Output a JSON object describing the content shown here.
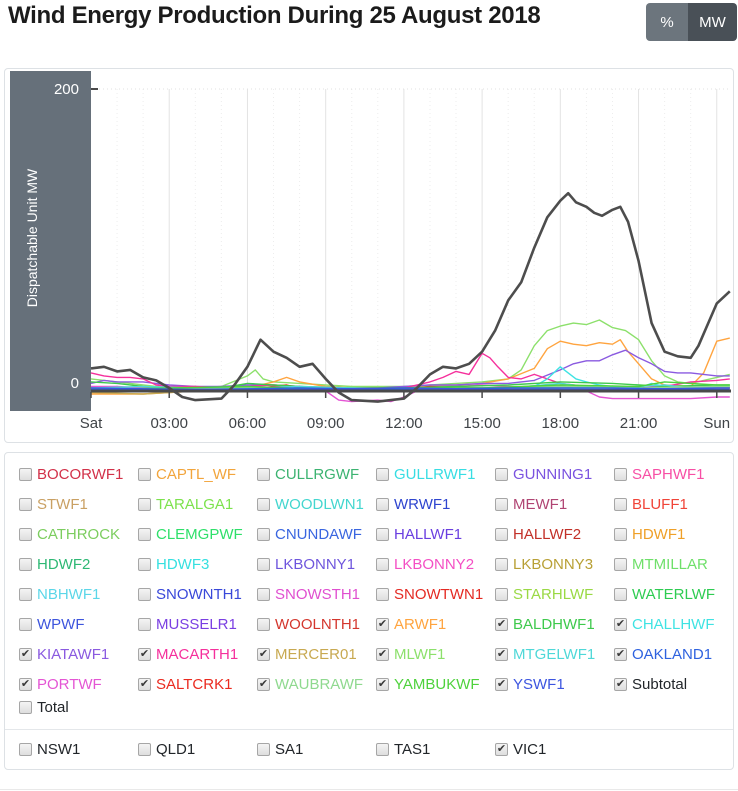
{
  "header": {
    "title": "Wind Energy Production During 25 August 2018",
    "toggle": {
      "percent_label": "%",
      "mw_label": "MW",
      "percent_color": "#6c757d",
      "mw_color": "#495057",
      "selected": "MW"
    }
  },
  "chart": {
    "y_axis_label": "Dispatchable Unit MW",
    "y_tick_top": "200",
    "y_tick_bottom": "0",
    "x_ticks": [
      "Sat",
      "03:00",
      "06:00",
      "09:00",
      "12:00",
      "15:00",
      "18:00",
      "21:00",
      "Sun"
    ],
    "band_color": "#66707a"
  },
  "chart_data": {
    "type": "line",
    "title": "Wind Energy Production During 25 August 2018",
    "ylabel": "Dispatchable Unit MW",
    "x_unit": "hours since Saturday 00:00",
    "xlim": [
      0,
      24.5
    ],
    "ylim": [
      0,
      200
    ],
    "y_ticks": [
      0,
      200
    ],
    "x_tick_labels": [
      "Sat",
      "03:00",
      "06:00",
      "09:00",
      "12:00",
      "15:00",
      "18:00",
      "21:00",
      "Sun"
    ],
    "grid": "vertical hourly dotted, 3-hourly solid, dotted line at 200",
    "series": [
      {
        "name": "Subtotal",
        "color": "#4d4d4d",
        "width": 2.6,
        "x": [
          0,
          0.5,
          1,
          1.5,
          2,
          2.5,
          3,
          3.5,
          4,
          5,
          5.5,
          6,
          6.5,
          7,
          7.5,
          8,
          8.5,
          9,
          9.5,
          10,
          11,
          12,
          12.5,
          13,
          13.5,
          14,
          14.5,
          15,
          15.5,
          16,
          16.5,
          17,
          17.5,
          18,
          18.3,
          18.6,
          19,
          19.3,
          19.6,
          20,
          20.3,
          20.6,
          21,
          21.5,
          22,
          22.5,
          23,
          23.3,
          23.6,
          24,
          24.5
        ],
        "y": [
          15,
          16,
          13,
          14,
          9,
          7,
          2,
          -4,
          -6,
          -5,
          4,
          16,
          34,
          26,
          22,
          16,
          18,
          8,
          -1,
          -6,
          -7,
          -5,
          2,
          11,
          16,
          15,
          18,
          26,
          40,
          60,
          72,
          95,
          115,
          126,
          131,
          125,
          122,
          118,
          116,
          120,
          122,
          112,
          86,
          45,
          26,
          23,
          22,
          30,
          42,
          58,
          66
        ]
      },
      {
        "name": "MLWF1",
        "color": "#8ce06b",
        "width": 1.4,
        "x": [
          0,
          1,
          2,
          3,
          4,
          5,
          6,
          6.3,
          6.6,
          7,
          8,
          9,
          10,
          11,
          12,
          13,
          14,
          15,
          16,
          16.5,
          17,
          17.5,
          18,
          18.5,
          19,
          19.5,
          20,
          20.5,
          21,
          21.5,
          22,
          22.5,
          23,
          24,
          24.5
        ],
        "y": [
          8,
          6,
          4,
          2,
          2,
          3,
          10,
          14,
          8,
          6,
          5,
          4,
          3,
          3,
          3,
          4,
          5,
          6,
          8,
          14,
          30,
          40,
          43,
          45,
          44,
          47,
          42,
          40,
          34,
          20,
          10,
          6,
          5,
          9,
          11
        ]
      },
      {
        "name": "ARWF1",
        "color": "#ffa43f",
        "width": 1.4,
        "x": [
          0,
          1,
          2,
          3,
          4,
          5,
          6,
          7,
          7.5,
          8,
          9,
          10,
          11,
          12,
          13,
          14,
          15,
          16,
          17,
          17.5,
          18,
          18.5,
          19,
          19.5,
          20,
          20.3,
          20.6,
          21,
          21.5,
          22,
          23,
          23.5,
          24,
          24.5
        ],
        "y": [
          -2,
          -2,
          -2,
          -1,
          0,
          1,
          2,
          6,
          9,
          6,
          3,
          2,
          2,
          2,
          3,
          4,
          5,
          8,
          15,
          28,
          33,
          31,
          30,
          32,
          31,
          34,
          26,
          18,
          8,
          4,
          3,
          12,
          33,
          35
        ]
      },
      {
        "name": "KIATAWF1",
        "color": "#8a5ae0",
        "width": 1.4,
        "x": [
          0,
          0.5,
          1,
          2,
          3,
          4,
          5,
          6,
          7,
          8,
          9,
          10,
          11,
          12,
          13,
          14,
          15,
          16,
          17,
          18,
          18.5,
          19,
          19.5,
          20,
          20.5,
          21,
          21.5,
          22,
          22.5,
          23,
          24,
          24.5
        ],
        "y": [
          5,
          7,
          6,
          6,
          4,
          3,
          3,
          4,
          4,
          3,
          2,
          2,
          2,
          3,
          4,
          4,
          5,
          5,
          7,
          14,
          18,
          20,
          20,
          24,
          27,
          22,
          18,
          13,
          12,
          12,
          10,
          10
        ]
      },
      {
        "name": "MACARTH1",
        "color": "#f5309c",
        "width": 1.4,
        "x": [
          0,
          0.5,
          1,
          1.5,
          2,
          2.5,
          3,
          4,
          5,
          6,
          7,
          8,
          9,
          10,
          11,
          12,
          13,
          13.5,
          14,
          14.5,
          15,
          15.3,
          15.6,
          16,
          16.5,
          17,
          17.5,
          18,
          19,
          20,
          21,
          22,
          23,
          24,
          24.5
        ],
        "y": [
          12,
          10,
          9,
          9,
          8,
          4,
          3,
          3,
          2,
          3,
          4,
          3,
          2,
          1,
          1,
          2,
          6,
          9,
          13,
          11,
          25,
          22,
          16,
          9,
          8,
          11,
          8,
          5,
          3,
          2,
          2,
          3,
          6,
          7,
          8
        ]
      },
      {
        "name": "CHALLHWF",
        "color": "#3fe3e3",
        "width": 1.4,
        "x": [
          0,
          2,
          4,
          6,
          8,
          10,
          12,
          14,
          16,
          17,
          17.5,
          18,
          18.3,
          18.6,
          19,
          19.5,
          20,
          21,
          21.5,
          22,
          23,
          24,
          24.5
        ],
        "y": [
          2,
          2,
          1,
          2,
          2,
          1,
          1,
          2,
          2,
          3,
          8,
          16,
          12,
          8,
          6,
          4,
          3,
          2,
          5,
          3,
          2,
          3,
          3
        ]
      },
      {
        "name": "PORTWF",
        "color": "#e455d4",
        "width": 1.4,
        "x": [
          0,
          1,
          2,
          3,
          4,
          5,
          6,
          7,
          8,
          9,
          9.5,
          10,
          11,
          11.5,
          12,
          12.5,
          13,
          14,
          15,
          16,
          17,
          18,
          19,
          19.5,
          20,
          21,
          22,
          23,
          24,
          24.5
        ],
        "y": [
          3,
          3,
          2,
          1,
          1,
          1,
          2,
          2,
          1,
          0,
          -6,
          -7,
          -6,
          -7,
          -4,
          0,
          2,
          3,
          4,
          3,
          2,
          1,
          0,
          -4,
          -5,
          -5,
          -5,
          -5,
          -4,
          -4
        ]
      },
      {
        "name": "MERCER01",
        "color": "#c8a951",
        "width": 1.4,
        "x": [
          0,
          2,
          4,
          6,
          8,
          10,
          12,
          14,
          16,
          18,
          20,
          22,
          24,
          24.5
        ],
        "y": [
          -1,
          -2,
          0,
          1,
          2,
          1,
          1,
          2,
          2,
          1,
          1,
          1,
          2,
          2
        ]
      },
      {
        "name": "SALTCRK1",
        "color": "#ea2a1f",
        "width": 1.4,
        "x": [
          0,
          2,
          4,
          5.5,
          6,
          7,
          7.5,
          8,
          10,
          12,
          13,
          14,
          16,
          18,
          20,
          22,
          24,
          24.5
        ],
        "y": [
          1,
          1,
          0,
          3,
          1,
          3,
          4,
          2,
          1,
          1,
          3,
          2,
          2,
          3,
          2,
          1,
          2,
          2
        ]
      },
      {
        "name": "BALDHWF1",
        "color": "#3ec94c",
        "width": 1.4,
        "x": [
          0,
          1,
          2,
          3,
          4,
          5,
          6,
          7,
          8,
          10,
          12,
          14,
          16,
          18,
          20,
          22,
          24,
          24.5
        ],
        "y": [
          6,
          5,
          3,
          2,
          1,
          2,
          5,
          4,
          3,
          2,
          2,
          3,
          4,
          6,
          5,
          3,
          4,
          4
        ]
      },
      {
        "name": "MTGELWF1",
        "color": "#4fd8d8",
        "width": 1.4,
        "x": [
          0,
          2,
          4,
          6,
          8,
          10,
          12,
          14,
          16,
          18,
          19,
          20,
          22,
          23,
          24,
          24.5
        ],
        "y": [
          2,
          3,
          2,
          2,
          3,
          2,
          1,
          2,
          2,
          5,
          3,
          2,
          4,
          2,
          3,
          3
        ]
      },
      {
        "name": "WAUBRAWF",
        "color": "#8fd98f",
        "width": 1.4,
        "x": [
          0,
          3,
          6,
          9,
          12,
          15,
          18,
          21,
          24,
          24.5
        ],
        "y": [
          2,
          1,
          2,
          1,
          1,
          2,
          3,
          2,
          3,
          3
        ]
      },
      {
        "name": "YAMBUKWF",
        "color": "#4ed23c",
        "width": 1.4,
        "x": [
          0,
          3,
          6,
          9,
          12,
          15,
          18,
          21,
          22,
          24,
          24.5
        ],
        "y": [
          1,
          2,
          3,
          1,
          2,
          2,
          4,
          3,
          6,
          4,
          4
        ]
      },
      {
        "name": "OAKLAND1",
        "color": "#2e62df",
        "width": 1.4,
        "x": [
          0,
          4,
          8,
          12,
          16,
          20,
          24,
          24.5
        ],
        "y": [
          1,
          1,
          2,
          1,
          2,
          2,
          1,
          1
        ]
      },
      {
        "name": "YSWF1",
        "color": "#3c55e0",
        "width": 1.4,
        "x": [
          0,
          4,
          8,
          12,
          16,
          20,
          24,
          24.5
        ],
        "y": [
          2,
          1,
          1,
          2,
          1,
          1,
          2,
          2
        ]
      }
    ]
  },
  "legend": {
    "farms": [
      {
        "label": "BOCORWF1",
        "color": "#d23149",
        "checked": false
      },
      {
        "label": "CAPTL_WF",
        "color": "#f2a53c",
        "checked": false
      },
      {
        "label": "CULLRGWF",
        "color": "#3cb371",
        "checked": false
      },
      {
        "label": "GULLRWF1",
        "color": "#37dde3",
        "checked": false
      },
      {
        "label": "GUNNING1",
        "color": "#7a52e0",
        "checked": false
      },
      {
        "label": "SAPHWF1",
        "color": "#f74fa5",
        "checked": false
      },
      {
        "label": "STWF1",
        "color": "#c9a063",
        "checked": false
      },
      {
        "label": "TARALGA1",
        "color": "#7de24d",
        "checked": false
      },
      {
        "label": "WOODLWN1",
        "color": "#43d6cf",
        "checked": false
      },
      {
        "label": "WRWF1",
        "color": "#2e45cf",
        "checked": false
      },
      {
        "label": "MEWF1",
        "color": "#b04573",
        "checked": false
      },
      {
        "label": "BLUFF1",
        "color": "#f04438",
        "checked": false
      },
      {
        "label": "CATHROCK",
        "color": "#7ccd5f",
        "checked": false
      },
      {
        "label": "CLEMGPWF",
        "color": "#2ee06a",
        "checked": false
      },
      {
        "label": "CNUNDAWF",
        "color": "#3a66e0",
        "checked": false
      },
      {
        "label": "HALLWF1",
        "color": "#6a3fe0",
        "checked": false
      },
      {
        "label": "HALLWF2",
        "color": "#c23028",
        "checked": false
      },
      {
        "label": "HDWF1",
        "color": "#efa028",
        "checked": false
      },
      {
        "label": "HDWF2",
        "color": "#2eb874",
        "checked": false
      },
      {
        "label": "HDWF3",
        "color": "#35e0e0",
        "checked": false
      },
      {
        "label": "LKBONNY1",
        "color": "#6e55dd",
        "checked": false
      },
      {
        "label": "LKBONNY2",
        "color": "#f44fc4",
        "checked": false
      },
      {
        "label": "LKBONNY3",
        "color": "#b8a035",
        "checked": false
      },
      {
        "label": "MTMILLAR",
        "color": "#6fe06a",
        "checked": false
      },
      {
        "label": "NBHWF1",
        "color": "#5bd6e8",
        "checked": false
      },
      {
        "label": "SNOWNTH1",
        "color": "#3948d9",
        "checked": false
      },
      {
        "label": "SNOWSTH1",
        "color": "#e04fd0",
        "checked": false
      },
      {
        "label": "SNOWTWN1",
        "color": "#e42a23",
        "checked": false
      },
      {
        "label": "STARHLWF",
        "color": "#9ad944",
        "checked": false
      },
      {
        "label": "WATERLWF",
        "color": "#2ecc52",
        "checked": false
      },
      {
        "label": "WPWF",
        "color": "#3d55dd",
        "checked": false
      },
      {
        "label": "MUSSELR1",
        "color": "#7a3fe2",
        "checked": false
      },
      {
        "label": "WOOLNTH1",
        "color": "#d4372e",
        "checked": false
      },
      {
        "label": "ARWF1",
        "color": "#ffa43f",
        "checked": true
      },
      {
        "label": "BALDHWF1",
        "color": "#3ec94c",
        "checked": true
      },
      {
        "label": "CHALLHWF",
        "color": "#3fe3e3",
        "checked": true
      },
      {
        "label": "KIATAWF1",
        "color": "#8a5ae0",
        "checked": true
      },
      {
        "label": "MACARTH1",
        "color": "#f5309c",
        "checked": true
      },
      {
        "label": "MERCER01",
        "color": "#c8a951",
        "checked": true
      },
      {
        "label": "MLWF1",
        "color": "#8ce06b",
        "checked": true
      },
      {
        "label": "MTGELWF1",
        "color": "#4fd8d8",
        "checked": true
      },
      {
        "label": "OAKLAND1",
        "color": "#2e62df",
        "checked": true
      },
      {
        "label": "PORTWF",
        "color": "#e455d4",
        "checked": true
      },
      {
        "label": "SALTCRK1",
        "color": "#ea2a1f",
        "checked": true
      },
      {
        "label": "WAUBRAWF",
        "color": "#8fd98f",
        "checked": true
      },
      {
        "label": "YAMBUKWF",
        "color": "#4ed23c",
        "checked": true
      },
      {
        "label": "YSWF1",
        "color": "#3c55e0",
        "checked": true
      },
      {
        "label": "Subtotal",
        "color": "#212529",
        "checked": true
      }
    ],
    "total": {
      "label": "Total",
      "checked": false
    },
    "regions": [
      {
        "label": "NSW1",
        "checked": false
      },
      {
        "label": "QLD1",
        "checked": false
      },
      {
        "label": "SA1",
        "checked": false
      },
      {
        "label": "TAS1",
        "checked": false
      },
      {
        "label": "VIC1",
        "checked": true
      }
    ]
  }
}
